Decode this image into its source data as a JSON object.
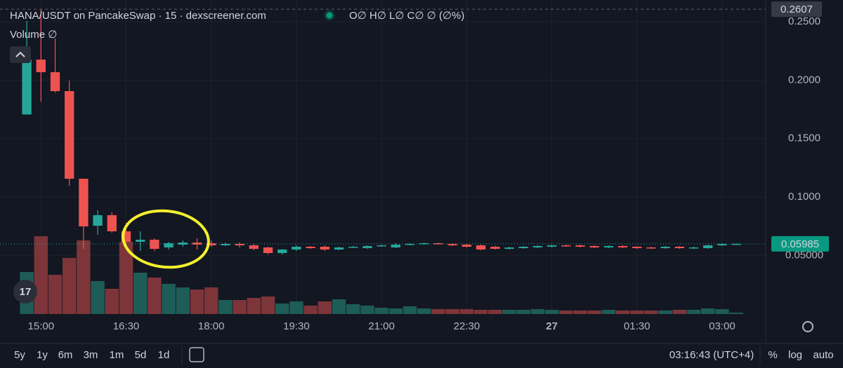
{
  "chart_data": {
    "type": "candlestick",
    "title": "HANA/USDT on PancakeSwap · 15 · dexscreener.com",
    "legend_text": "O∅ H∅ L∅ C∅ ∅ (∅%)",
    "volume_label": "Volume ∅",
    "categories": [
      null,
      "15:00",
      null,
      null,
      null,
      null,
      null,
      "16:30",
      null,
      null,
      null,
      null,
      null,
      "18:00",
      null,
      null,
      null,
      null,
      null,
      "19:30",
      null,
      null,
      null,
      null,
      null,
      "21:00",
      null,
      null,
      null,
      null,
      null,
      "22:30",
      null,
      null,
      null,
      null,
      null,
      "27",
      null,
      null,
      null,
      null,
      null,
      "01:30",
      null,
      null,
      null,
      null,
      null,
      "03:00",
      null
    ],
    "open": [
      0.1706,
      0.2176,
      0.2068,
      0.1906,
      0.1156,
      0.0754,
      0.0844,
      0.0706,
      0.0616,
      0.0634,
      0.0568,
      0.0592,
      0.061,
      0.0604,
      0.0586,
      0.0598,
      0.0586,
      0.0568,
      0.052,
      0.055,
      0.0574,
      0.0574,
      0.055,
      0.0568,
      0.0562,
      0.058,
      0.0568,
      0.0592,
      0.0598,
      0.0604,
      0.0598,
      0.0592,
      0.0586,
      0.0574,
      0.0556,
      0.0562,
      0.0568,
      0.0574,
      0.0586,
      0.0586,
      0.058,
      0.0568,
      0.058,
      0.0574,
      0.0568,
      0.0562,
      0.0574,
      0.0562,
      0.0562,
      0.0586,
      0.0598
    ],
    "high": [
      0.2506,
      0.2607,
      0.2356,
      0.1996,
      0.1156,
      0.0886,
      0.0868,
      0.0778,
      0.0706,
      0.0646,
      0.0616,
      0.0628,
      0.0646,
      0.0628,
      0.061,
      0.061,
      0.0598,
      0.0574,
      0.0556,
      0.0586,
      0.058,
      0.0586,
      0.0574,
      0.058,
      0.0586,
      0.0592,
      0.0604,
      0.0604,
      0.061,
      0.061,
      0.0604,
      0.0598,
      0.0592,
      0.058,
      0.0574,
      0.058,
      0.0586,
      0.0592,
      0.0592,
      0.0592,
      0.0586,
      0.0586,
      0.0586,
      0.058,
      0.0574,
      0.058,
      0.058,
      0.0574,
      0.0592,
      0.0604,
      0.0604
    ],
    "low": [
      0.1706,
      0.1816,
      0.1894,
      0.1096,
      0.0556,
      0.0676,
      0.0694,
      0.0556,
      0.0538,
      0.0538,
      0.055,
      0.0574,
      0.055,
      0.0574,
      0.058,
      0.0568,
      0.0544,
      0.0508,
      0.0508,
      0.0538,
      0.0556,
      0.0538,
      0.0544,
      0.0562,
      0.0556,
      0.0574,
      0.0562,
      0.0586,
      0.0592,
      0.0592,
      0.058,
      0.0568,
      0.0544,
      0.055,
      0.055,
      0.0556,
      0.0562,
      0.0568,
      0.0574,
      0.0568,
      0.0562,
      0.0562,
      0.0562,
      0.0556,
      0.0556,
      0.0556,
      0.0556,
      0.0556,
      0.0556,
      0.058,
      0.0592
    ],
    "close": [
      0.2176,
      0.2068,
      0.1906,
      0.1156,
      0.0748,
      0.0844,
      0.0706,
      0.0616,
      0.0634,
      0.0556,
      0.0604,
      0.061,
      0.0592,
      0.0586,
      0.0598,
      0.0586,
      0.0556,
      0.052,
      0.055,
      0.0574,
      0.0562,
      0.055,
      0.0568,
      0.0574,
      0.058,
      0.0586,
      0.0592,
      0.0598,
      0.0604,
      0.0598,
      0.0586,
      0.0574,
      0.055,
      0.0556,
      0.0568,
      0.0574,
      0.058,
      0.0586,
      0.058,
      0.0574,
      0.0568,
      0.058,
      0.0568,
      0.0562,
      0.0562,
      0.0574,
      0.0562,
      0.0568,
      0.0586,
      0.0598,
      0.05985
    ],
    "volume": [
      60,
      111,
      56,
      80,
      105,
      47,
      36,
      103,
      59,
      52,
      43,
      38,
      35,
      38,
      20,
      20,
      23,
      25,
      15,
      18,
      12,
      18,
      21,
      14,
      12,
      9,
      8,
      11,
      8,
      7,
      7,
      7,
      6,
      6,
      6,
      6,
      7,
      6,
      5,
      5,
      5,
      6,
      5,
      5,
      5,
      5,
      6,
      6,
      8,
      7,
      2
    ],
    "ylim": [
      -0.0002,
      0.2686
    ],
    "volume_lim": [
      0,
      448
    ],
    "yticks": [
      {
        "value": 0.05,
        "label": "0.05000"
      },
      {
        "value": 0.1,
        "label": "0.1000"
      },
      {
        "value": 0.15,
        "label": "0.1500"
      },
      {
        "value": 0.2,
        "label": "0.2000"
      },
      {
        "value": 0.25,
        "label": "0.2500"
      }
    ],
    "last_price": 0.05985,
    "high_marker": 0.2607,
    "grid": true,
    "up_color": "#26a69a",
    "down_color": "#ef5350",
    "volume_up_color": "#1e5c57",
    "volume_down_color": "#7d3539"
  },
  "ui": {
    "ranges": [
      "5y",
      "1y",
      "6m",
      "3m",
      "1m",
      "5d",
      "1d"
    ],
    "clock": "03:16:43 (UTC+4)",
    "scale_buttons": [
      "%",
      "log",
      "auto"
    ]
  }
}
